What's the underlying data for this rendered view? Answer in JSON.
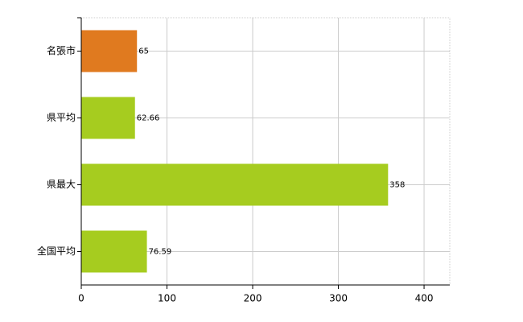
{
  "chart_data": {
    "type": "hbar",
    "categories": [
      "名張市",
      "県平均",
      "県最大",
      "全国平均"
    ],
    "values": [
      65,
      62.66,
      358,
      76.59
    ],
    "colors": [
      "#e07a1f",
      "#a6cc1f",
      "#a6cc1f",
      "#a6cc1f"
    ],
    "xlim": [
      0,
      430
    ],
    "xticks": [
      0,
      100,
      200,
      300,
      400
    ],
    "grid": true
  }
}
